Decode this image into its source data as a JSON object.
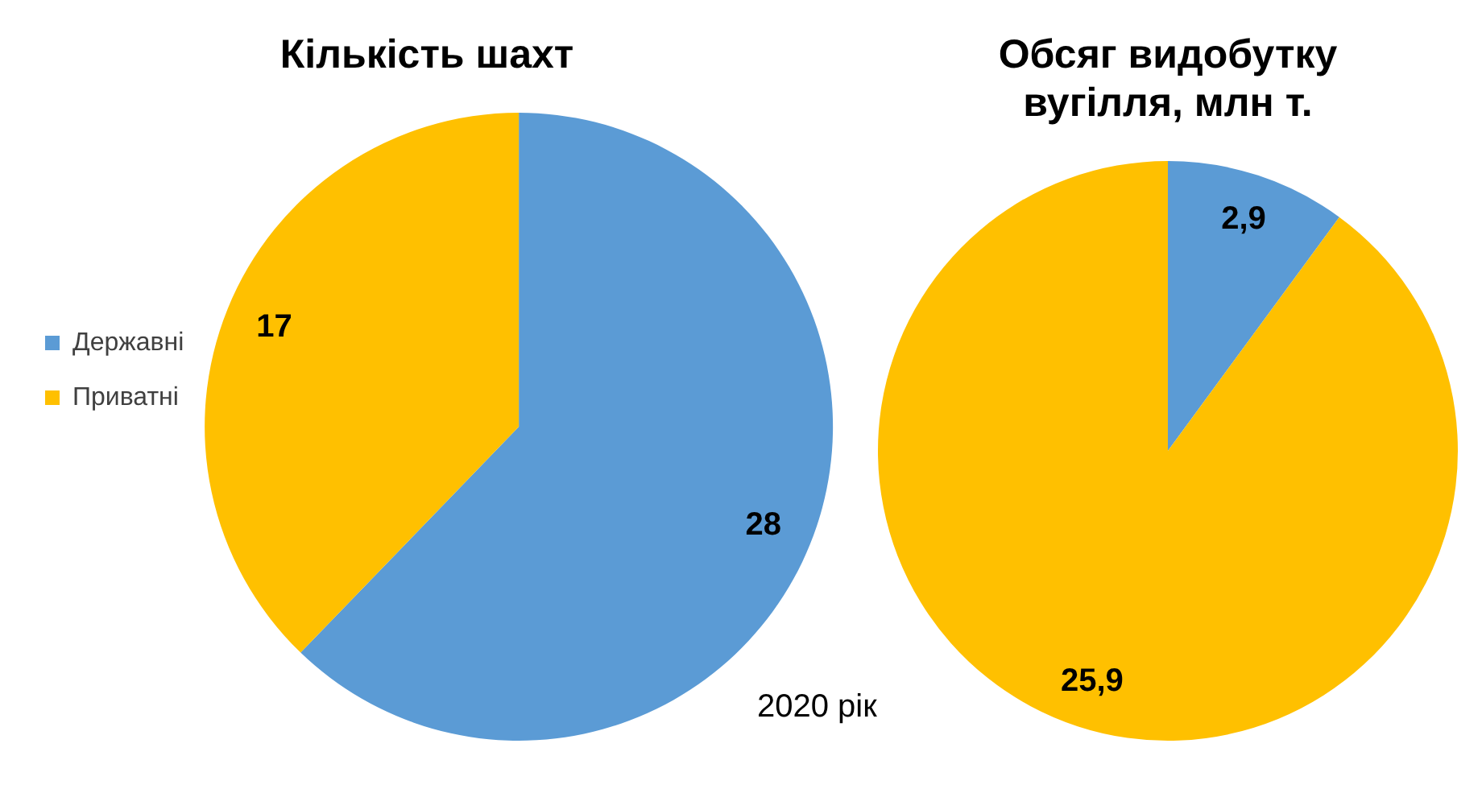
{
  "chart_data": [
    {
      "type": "pie",
      "title": "Кількість шахт",
      "categories": [
        "Державні",
        "Приватні"
      ],
      "values": [
        28,
        17
      ],
      "colors": [
        "#5b9bd5",
        "#ffc000"
      ],
      "data_labels": true,
      "legend": "left",
      "annotations": [
        "2020 рік"
      ]
    },
    {
      "type": "pie",
      "title": "Обсяг видобутку вугілля, млн т.",
      "categories": [
        null,
        null
      ],
      "values": [
        2.9,
        25.9
      ],
      "colors": [
        "#5b9bd5",
        "#ffc000"
      ],
      "value_labels": [
        "2,9",
        "25,9"
      ]
    }
  ]
}
